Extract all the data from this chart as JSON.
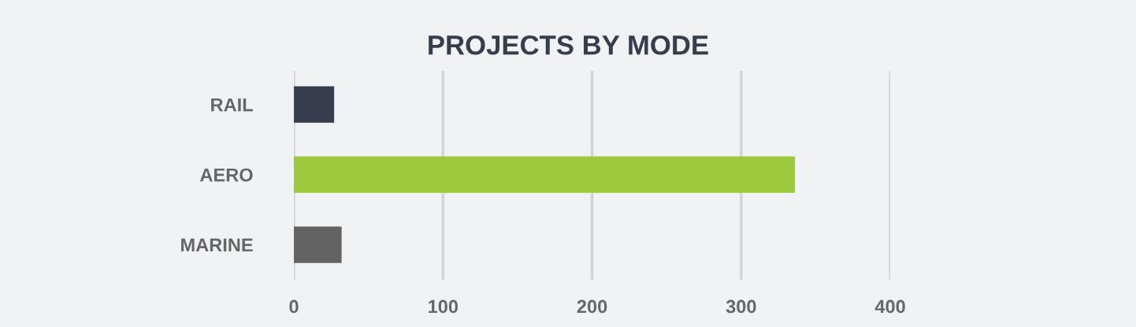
{
  "chart_data": {
    "type": "bar",
    "orientation": "horizontal",
    "title": "PROJECTS BY MODE",
    "categories": [
      "RAIL",
      "AERO",
      "MARINE"
    ],
    "values": [
      27,
      336,
      32
    ],
    "colors": [
      "#363d4c",
      "#9cca3c",
      "#636363"
    ],
    "xlim": [
      0,
      400
    ],
    "xticks": [
      0,
      100,
      200,
      300,
      400
    ],
    "grid": "x"
  }
}
